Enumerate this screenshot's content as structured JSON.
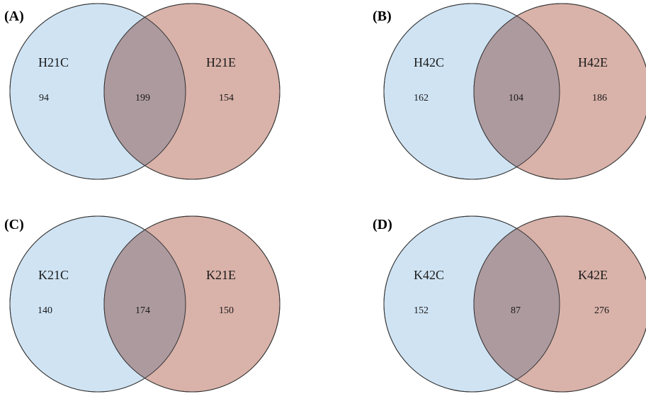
{
  "colors": {
    "left_set": "#cfe3f3",
    "right_set": "#d9b2a9",
    "overlap": "#ad9a9f",
    "outline": "#333333"
  },
  "panels": [
    {
      "label": "(A)",
      "left_name": "H21C",
      "right_name": "H21E",
      "left_only": "94",
      "both": "199",
      "right_only": "154"
    },
    {
      "label": "(B)",
      "left_name": "H42C",
      "right_name": "H42E",
      "left_only": "162",
      "both": "104",
      "right_only": "186"
    },
    {
      "label": "(C)",
      "left_name": "K21C",
      "right_name": "K21E",
      "left_only": "140",
      "both": "174",
      "right_only": "150"
    },
    {
      "label": "(D)",
      "left_name": "K42C",
      "right_name": "K42E",
      "left_only": "152",
      "both": "87",
      "right_only": "276"
    }
  ]
}
